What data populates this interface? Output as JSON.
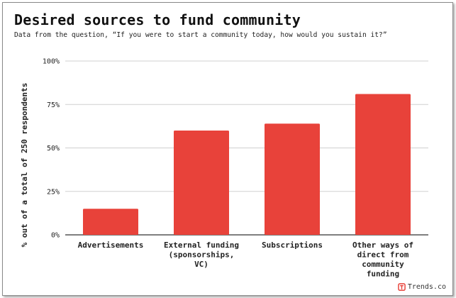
{
  "title": "Desired sources to fund community",
  "subtitle": "Data from the question, “If you were to start a community today, how would you sustain it?”",
  "brand": {
    "name": "Trends.co",
    "icon": "trends-logo-icon",
    "color": "#e8423a"
  },
  "colors": {
    "bar": "#e8423a",
    "grid": "#d0d0d0",
    "axis": "#333333"
  },
  "chart_data": {
    "type": "bar",
    "categories": [
      [
        "Advertisements"
      ],
      [
        "External funding",
        "(sponsorships,",
        "VC)"
      ],
      [
        "Subscriptions"
      ],
      [
        "Other ways of",
        "direct from",
        "community",
        "funding"
      ]
    ],
    "values": [
      15,
      60,
      64,
      81
    ],
    "ylabel": "% out of a total of 250 respondents",
    "xlabel": "",
    "ylim": [
      0,
      100
    ],
    "yticks": [
      "0%",
      "25%",
      "50%",
      "75%",
      "100%"
    ],
    "grid": true,
    "legend": "none"
  }
}
